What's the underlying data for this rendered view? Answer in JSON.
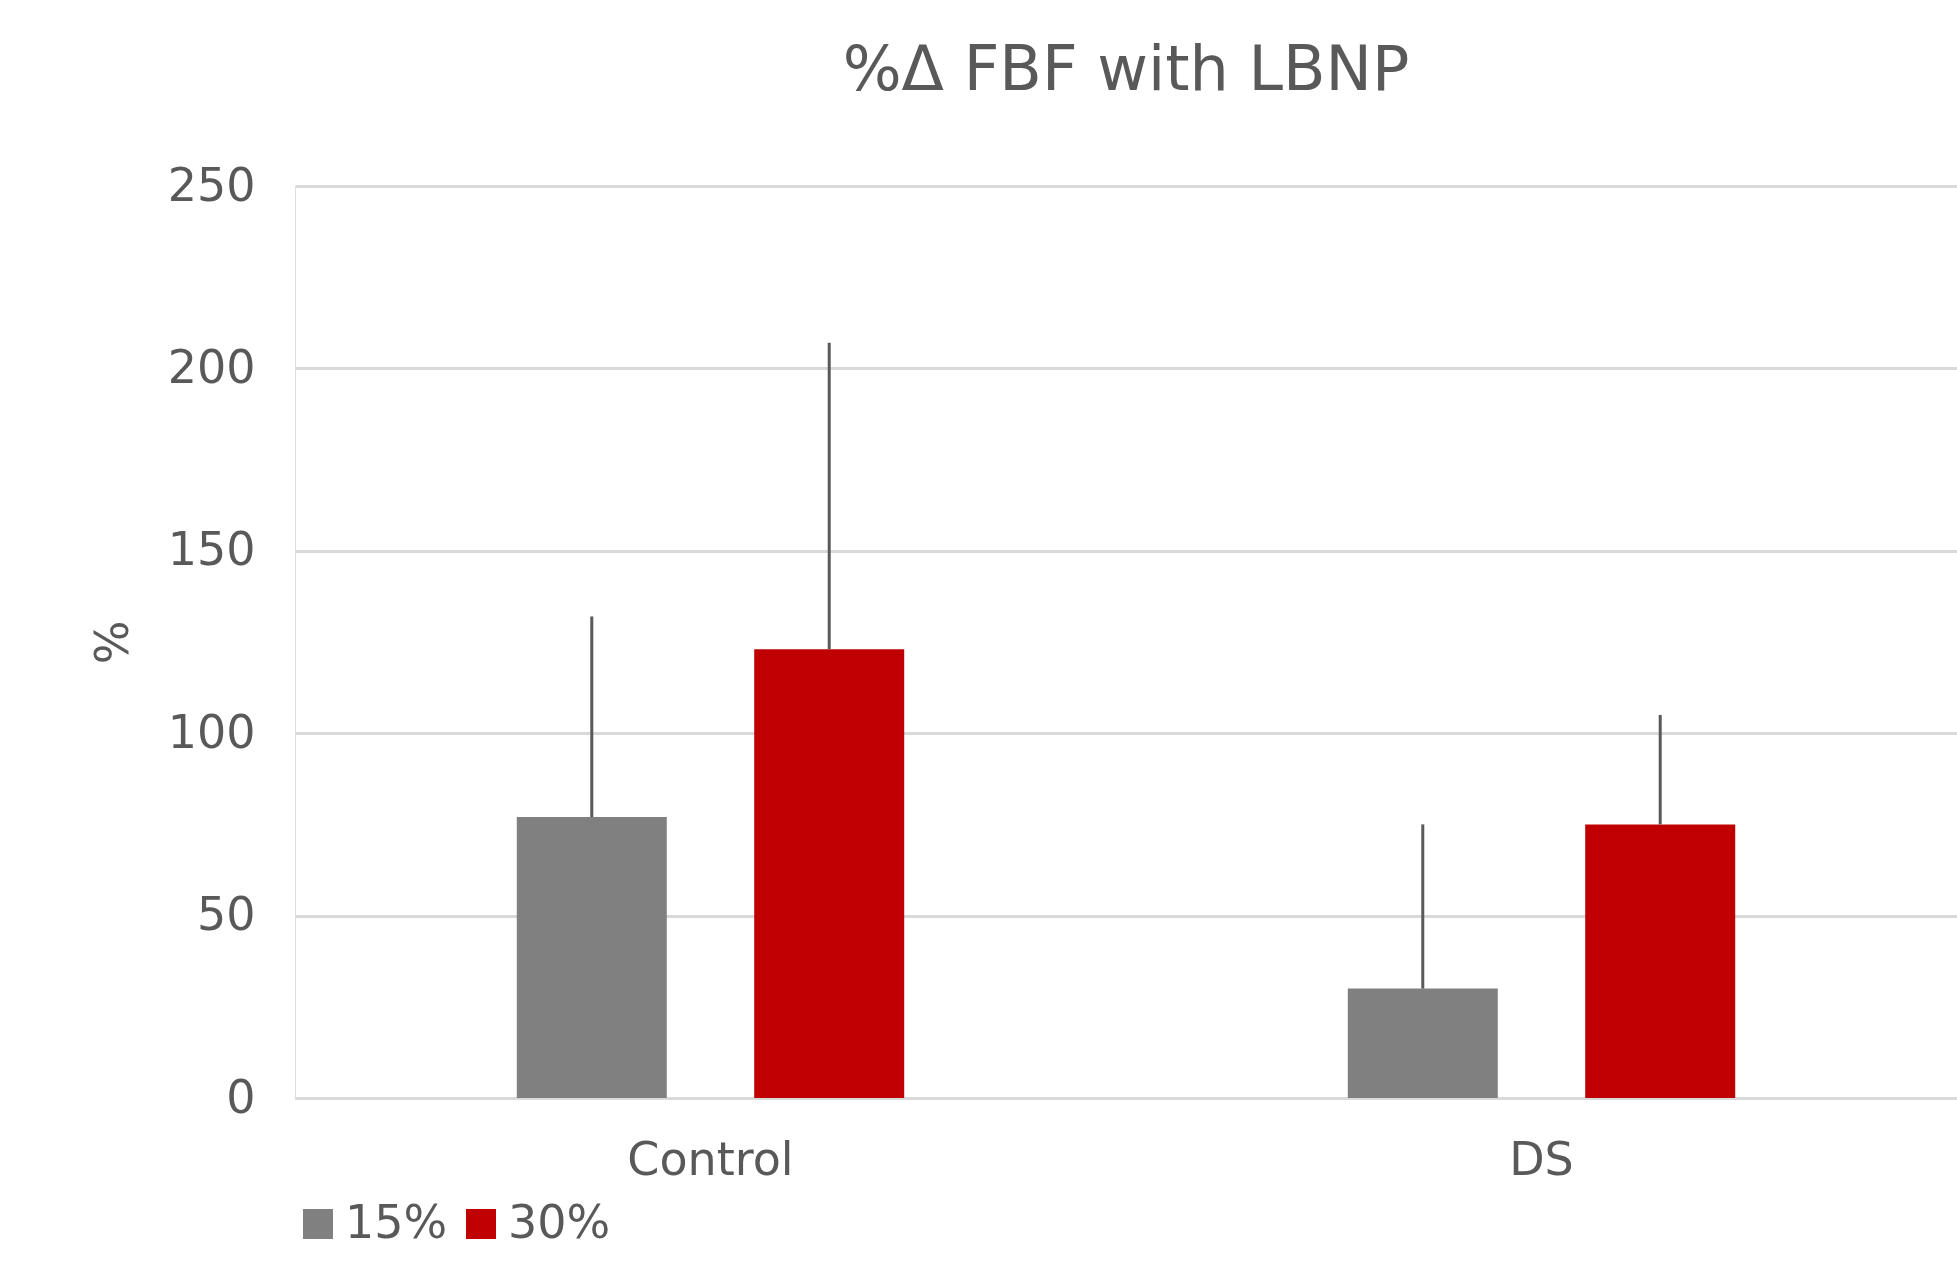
{
  "chart_data": {
    "type": "bar",
    "title": "%Δ FBF with LBNP",
    "ylabel": "%",
    "categories": [
      "Control",
      "DS"
    ],
    "series": [
      {
        "name": "15%",
        "color": "#808080",
        "values": [
          77,
          30
        ],
        "errors": [
          [
            77,
            132
          ],
          [
            30,
            75
          ]
        ]
      },
      {
        "name": "30%",
        "color": "#c00000",
        "values": [
          123,
          75
        ],
        "errors": [
          [
            123,
            207
          ],
          [
            75,
            105
          ]
        ]
      }
    ],
    "ylim": [
      0,
      250
    ],
    "yticks": [
      0,
      50,
      100,
      150,
      200,
      250
    ],
    "grid": "y",
    "legend": "bottom"
  }
}
